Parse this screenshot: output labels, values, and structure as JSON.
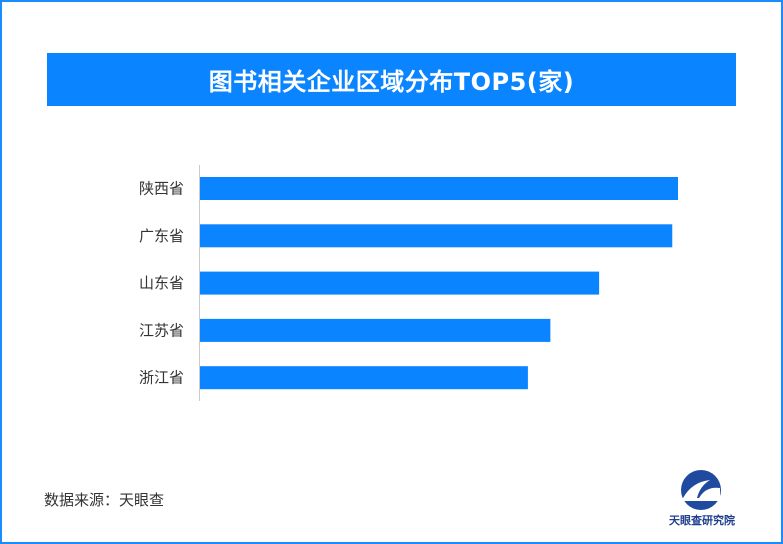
{
  "title": "图书相关企业区域分布TOP5(家)",
  "source": "数据来源：天眼查",
  "logo": {
    "text": "天眼查研究院",
    "icon": "tianyancha-logo"
  },
  "colors": {
    "bar": "#0a84ff",
    "title_bg": "#0a84ff",
    "border": "#1a8cff"
  },
  "chart_data": {
    "type": "bar",
    "orientation": "horizontal",
    "title": "图书相关企业区域分布TOP5(家)",
    "categories": [
      "陕西省",
      "广东省",
      "山东省",
      "江苏省",
      "浙江省"
    ],
    "values": [
      100,
      98.8,
      83.5,
      73.3,
      68.6
    ],
    "xlim": [
      0,
      100
    ],
    "grid": false,
    "axis_values_shown": false
  }
}
